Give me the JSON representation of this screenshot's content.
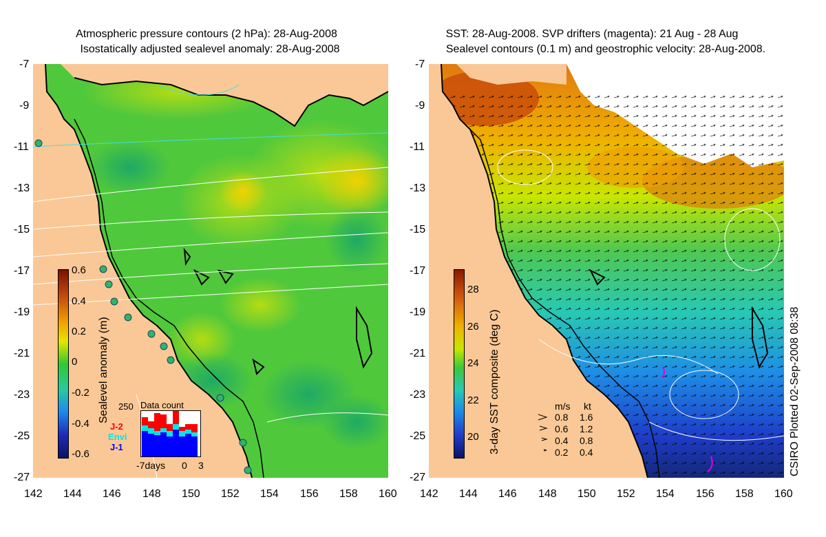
{
  "left_panel": {
    "title_line1": "Atmospheric pressure contours (2 hPa): 28-Aug-2008",
    "title_line2": "Isostatically adjusted sealevel anomaly: 28-Aug-2008",
    "colorbar": {
      "label": "Sealevel anomaly (m)",
      "ticks": [
        "0.6",
        "0.4",
        "0.2",
        "0",
        "-0.2",
        "-0.4",
        "-0.6"
      ],
      "colors": [
        "#7a1000",
        "#c44a10",
        "#f2a000",
        "#e6e600",
        "#32c832",
        "#28c8a0",
        "#1e8cf0",
        "#1e2ab4",
        "#0a1466"
      ]
    },
    "data_count": {
      "title": "Data count",
      "ymax_label": "250",
      "x_labels": [
        "-7days",
        "0",
        "3"
      ],
      "legend": [
        {
          "name": "J-2",
          "color": "#ff0000"
        },
        {
          "name": "Envi",
          "color": "#00e6e6"
        },
        {
          "name": "J-1",
          "color": "#0000ff"
        }
      ]
    }
  },
  "right_panel": {
    "title_line1": "SST: 28-Aug-2008. SVP drifters (magenta): 21 Aug - 28 Aug",
    "title_line2": "Sealevel contours (0.1 m) and geostrophic velocity: 28-Aug-2008.",
    "colorbar": {
      "label": "3-day SST composite (deg C)",
      "ticks": [
        "28",
        "26",
        "24",
        "22",
        "20"
      ],
      "colors": [
        "#8a1a00",
        "#d45a10",
        "#f0b000",
        "#c8e600",
        "#3cc83c",
        "#28c8b4",
        "#1e8ce6",
        "#1e3cc8",
        "#0a1464"
      ]
    },
    "velocity_legend": {
      "headers": [
        "m/s",
        "kt"
      ],
      "rows": [
        [
          "0.8",
          "1.6"
        ],
        [
          "0.6",
          "1.2"
        ],
        [
          "0.4",
          "0.8"
        ],
        [
          "0.2",
          "0.4"
        ]
      ]
    }
  },
  "axes": {
    "x_ticks": [
      "142",
      "144",
      "146",
      "148",
      "150",
      "152",
      "154",
      "156",
      "158",
      "160"
    ],
    "y_ticks": [
      "-7",
      "-9",
      "-11",
      "-13",
      "-15",
      "-17",
      "-19",
      "-21",
      "-23",
      "-25",
      "-27"
    ]
  },
  "credit": "CSIRO Plotted 02-Sep-2008 08:38",
  "colors": {
    "land": "#fac896",
    "sea_green": "#3cc83c",
    "coast": "#000000"
  }
}
